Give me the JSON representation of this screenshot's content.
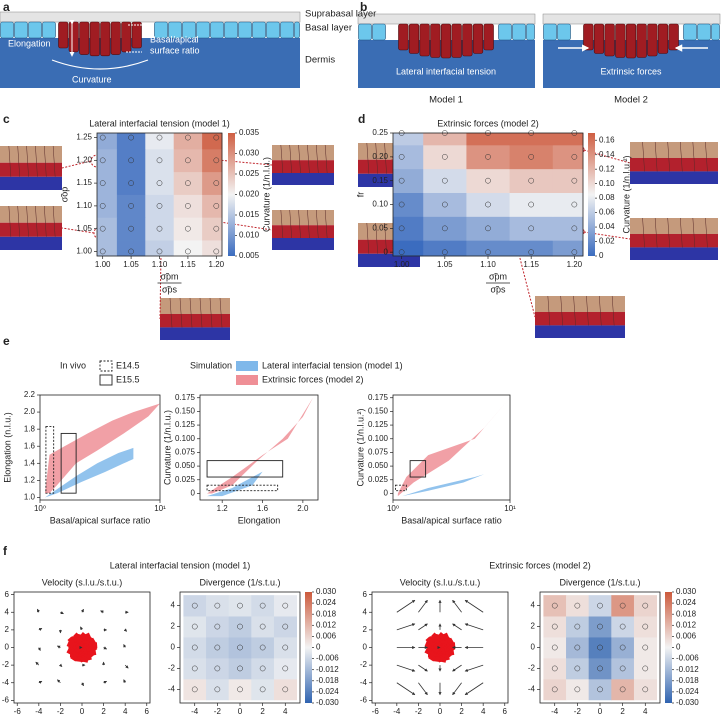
{
  "panel_labels": [
    "a",
    "b",
    "c",
    "d",
    "e",
    "f"
  ],
  "a": {
    "suprabasal": "Suprabasal layer",
    "basal": "Basal layer",
    "dermis": "Dermis",
    "elongation": "Elongation",
    "ratio": [
      "Basal/apical",
      "surface ratio"
    ],
    "curvature": "Curvature"
  },
  "b": {
    "model1_force": "Lateral interfacial tension",
    "model2_force": "Extrinsic forces",
    "model1": "Model 1",
    "model2": "Model 2"
  },
  "f": {
    "left_title": "Lateral interfacial tension (model 1)",
    "right_title": "Extrinsic forces (model 2)"
  },
  "chart_data": [
    {
      "type": "heatmap",
      "title": "Lateral interfacial tension (model 1)",
      "ylabel": "σ̃op",
      "xlabel": [
        "σ̃pm",
        "σ̃ps"
      ],
      "colorbar_label": "Curvature (1/n.l.u.)",
      "x": [
        1.0,
        1.05,
        1.1,
        1.15,
        1.2
      ],
      "y": [
        1.0,
        1.05,
        1.1,
        1.15,
        1.2,
        1.25
      ],
      "z": [
        [
          0.014,
          0.008,
          0.016,
          0.02,
          0.022
        ],
        [
          0.014,
          0.008,
          0.017,
          0.021,
          0.024
        ],
        [
          0.013,
          0.008,
          0.017,
          0.022,
          0.026
        ],
        [
          0.013,
          0.007,
          0.018,
          0.024,
          0.029
        ],
        [
          0.013,
          0.007,
          0.018,
          0.026,
          0.032
        ],
        [
          0.012,
          0.007,
          0.019,
          0.027,
          0.034
        ]
      ],
      "xlim": [
        0.99,
        1.21
      ],
      "ylim": [
        0.99,
        1.26
      ],
      "xticks": [
        {
          "value": 1.0,
          "label": "1.00"
        },
        1.05,
        {
          "value": 1.1,
          "label": "1.10"
        },
        1.15,
        {
          "value": 1.2,
          "label": "1.20"
        }
      ],
      "yticks": [
        {
          "value": 1.0,
          "label": "1.00"
        },
        1.05,
        {
          "value": 1.1,
          "label": "1.10"
        },
        1.15,
        {
          "value": 1.2,
          "label": "1.20"
        },
        1.25
      ],
      "colors": [
        "#3b6cbf",
        "#f3f3f3",
        "#cf5f43"
      ],
      "clim": [
        0.005,
        0.035
      ],
      "cticks": [
        0.005,
        {
          "value": 0.01,
          "label": "0.010"
        },
        0.015,
        {
          "value": 0.02,
          "label": "0.020"
        },
        0.025,
        {
          "value": 0.03,
          "label": "0.030"
        },
        0.035
      ]
    },
    {
      "type": "heatmap",
      "title": "Extrinsic forces (model 2)",
      "ylabel": "fr",
      "xlabel": [
        "σ̃pm",
        "σ̃ps"
      ],
      "colorbar_label": "Curvature (1/n.l.u.²)",
      "x": [
        1.0,
        1.05,
        1.1,
        1.15,
        1.2
      ],
      "y": [
        0,
        0.05,
        0.1,
        0.15,
        0.2,
        0.25
      ],
      "z": [
        [
          0.0,
          0.01,
          0.02,
          0.02,
          0.03
        ],
        [
          0.01,
          0.03,
          0.04,
          0.05,
          0.05
        ],
        [
          0.02,
          0.05,
          0.07,
          0.08,
          0.08
        ],
        [
          0.04,
          0.07,
          0.1,
          0.11,
          0.11
        ],
        [
          0.05,
          0.1,
          0.14,
          0.15,
          0.14
        ],
        [
          0.06,
          0.12,
          0.16,
          0.16,
          0.16
        ]
      ],
      "xlim": [
        0.99,
        1.21
      ],
      "ylim": [
        -0.008,
        0.25
      ],
      "xticks": [
        {
          "value": 1.0,
          "label": "1.00"
        },
        1.05,
        {
          "value": 1.1,
          "label": "1.10"
        },
        1.15,
        {
          "value": 1.2,
          "label": "1.20"
        }
      ],
      "yticks": [
        0,
        0.05,
        {
          "value": 0.1,
          "label": "0.10"
        },
        0.15,
        {
          "value": 0.2,
          "label": "0.20"
        },
        0.25
      ],
      "colors": [
        "#3b6cbf",
        "#f3f3f3",
        "#cf5f43"
      ],
      "clim": [
        0,
        0.17
      ],
      "cticks": [
        0,
        0.02,
        0.04,
        0.06,
        0.08,
        {
          "value": 0.1,
          "label": "0.10"
        },
        0.12,
        0.14,
        0.16
      ]
    },
    {
      "type": "area",
      "legend_title": "In vivo",
      "xlabel": "Basal/apical surface ratio",
      "ylabel": "Elongation (n.l.u.)",
      "log_x": true,
      "xlim": [
        1,
        10
      ],
      "ylim": [
        0.97,
        2.2
      ],
      "xticks": [
        {
          "value": 1,
          "label": "10⁰"
        },
        {
          "value": 10,
          "label": "10¹"
        }
      ],
      "yticks": [
        {
          "value": 1.0,
          "label": "1.0"
        },
        1.2,
        1.4,
        1.6,
        1.8,
        {
          "value": 2.0,
          "label": "2.0"
        },
        2.2
      ],
      "series": [
        {
          "color": "#7fb8ea",
          "x": [
            1.1,
            1.4,
            2,
            3,
            4.5,
            6,
            6,
            5,
            3.5,
            2.2,
            1.4,
            1.1
          ],
          "values": [
            1.0,
            1.1,
            1.25,
            1.4,
            1.52,
            1.58,
            1.45,
            1.4,
            1.3,
            1.18,
            1.05,
            1.0
          ]
        },
        {
          "color": "#ef8f96",
          "x": [
            1.1,
            1.2,
            1.6,
            2.5,
            4,
            6,
            10,
            8,
            5,
            3,
            2,
            1.4,
            1.2
          ],
          "values": [
            1.05,
            1.5,
            1.6,
            1.75,
            1.9,
            2.0,
            2.1,
            1.95,
            1.75,
            1.55,
            1.4,
            1.15,
            1.05
          ]
        }
      ],
      "boxes": [
        {
          "name": "E14.5",
          "style": "dashed",
          "x": [
            1.12,
            1.3
          ],
          "y": [
            1.05,
            1.83
          ]
        },
        {
          "name": "E15.5",
          "style": "solid",
          "x": [
            1.5,
            2.0
          ],
          "y": [
            1.05,
            1.75
          ]
        }
      ]
    },
    {
      "type": "area",
      "legend_title": "Simulation",
      "xlabel": "Elongation",
      "ylabel": "Curvature (1/n.l.u.)",
      "log_x": false,
      "xlim": [
        0.98,
        2.15
      ],
      "ylim": [
        -0.012,
        0.18
      ],
      "xticks": [
        1.2,
        1.6,
        {
          "value": 2.0,
          "label": "2.0"
        }
      ],
      "yticks": [
        0,
        0.025,
        {
          "value": 0.05,
          "label": "0.050"
        },
        0.075,
        {
          "value": 0.1,
          "label": "0.100"
        },
        0.125,
        {
          "value": 0.15,
          "label": "0.150"
        },
        0.175
      ],
      "series": [
        {
          "name": "Lateral interfacial tension (model 1)",
          "color": "#7fb8ea",
          "x": [
            1.05,
            1.3,
            1.5,
            1.6,
            1.5,
            1.2
          ],
          "values": [
            -0.005,
            0.01,
            0.03,
            0.04,
            0.015,
            -0.005
          ]
        },
        {
          "name": "Extrinsic forces (model 2)",
          "color": "#ef8f96",
          "x": [
            1.05,
            1.3,
            1.6,
            1.85,
            2.1,
            2.0,
            1.8,
            1.55,
            1.3,
            1.1
          ],
          "values": [
            0,
            0.03,
            0.07,
            0.1,
            0.175,
            0.14,
            0.1,
            0.06,
            0.015,
            0.0
          ]
        }
      ],
      "boxes": [
        {
          "style": "solid",
          "x": [
            1.05,
            1.8
          ],
          "y": [
            0.03,
            0.06
          ]
        },
        {
          "style": "dashed",
          "x": [
            1.05,
            1.75
          ],
          "y": [
            0.005,
            0.015
          ]
        }
      ]
    },
    {
      "type": "area",
      "xlabel": "Basal/apical surface ratio",
      "ylabel": "Curvature (1/n.l.u.²)",
      "log_x": true,
      "xlim": [
        1,
        10
      ],
      "ylim": [
        -0.012,
        0.18
      ],
      "xticks": [
        {
          "value": 1,
          "label": "10⁰"
        },
        {
          "value": 10,
          "label": "10¹"
        }
      ],
      "yticks": [
        0,
        0.025,
        {
          "value": 0.05,
          "label": "0.050"
        },
        0.075,
        {
          "value": 0.1,
          "label": "0.100"
        },
        0.125,
        {
          "value": 0.15,
          "label": "0.150"
        },
        0.175
      ],
      "series": [
        {
          "color": "#7fb8ea",
          "x": [
            1.2,
            2,
            5,
            6,
            4,
            2
          ],
          "values": [
            -0.005,
            0.01,
            0.03,
            0.035,
            0.02,
            0.005
          ]
        },
        {
          "color": "#ef8f96",
          "x": [
            1.1,
            1.3,
            2,
            5,
            10,
            6,
            3,
            1.5,
            1.1
          ],
          "values": [
            0,
            0.03,
            0.07,
            0.1,
            0.175,
            0.12,
            0.06,
            0.02,
            -0.005
          ]
        }
      ],
      "boxes": [
        {
          "style": "solid",
          "x": [
            1.4,
            1.9
          ],
          "y": [
            0.03,
            0.06
          ]
        },
        {
          "style": "dashed",
          "x": [
            1.05,
            1.3
          ],
          "y": [
            0.005,
            0.015
          ]
        }
      ]
    },
    {
      "type": "quiver",
      "title": "Velocity (s.l.u./s.t.u.)",
      "xlim": [
        -6.3,
        6.3
      ],
      "ylim": [
        -6.3,
        6.3
      ],
      "xticks": [
        -6,
        -4,
        -2,
        0,
        2,
        4,
        6
      ],
      "yticks": [
        -6,
        -4,
        -2,
        0,
        2,
        4,
        6
      ],
      "color": "#333333",
      "x": [
        -4,
        -2,
        0,
        2,
        4,
        -4,
        -2,
        0,
        2,
        4,
        -4,
        -2,
        0,
        2,
        4,
        -4,
        -2,
        0,
        2,
        4,
        -4,
        -2,
        0,
        2,
        4
      ],
      "y": [
        -4,
        -4,
        -4,
        -4,
        -4,
        -2,
        -2,
        -2,
        -2,
        -2,
        0,
        0,
        0,
        0,
        0,
        2,
        2,
        2,
        2,
        2,
        4,
        4,
        4,
        4,
        4
      ],
      "u": [
        0.1,
        -0.1,
        0.05,
        0.1,
        -0.05,
        -0.1,
        0.05,
        0.1,
        0,
        0.1,
        0.05,
        -0.1,
        0,
        0.1,
        -0.05,
        0.1,
        0,
        -0.05,
        0.1,
        0.05,
        -0.05,
        0.1,
        0.05,
        -0.1,
        0.1
      ],
      "v": [
        0.05,
        0.1,
        -0.1,
        0.05,
        0.1,
        0.1,
        -0.05,
        0,
        0.1,
        -0.1,
        -0.1,
        0.05,
        0,
        -0.05,
        0.1,
        0.05,
        -0.1,
        0.1,
        0,
        -0.05,
        0.1,
        -0.05,
        0.1,
        0.05,
        0
      ]
    },
    {
      "type": "heatmap",
      "title": "Divergence (1/s.t.u.)",
      "xlim": [
        -5.3,
        5.3
      ],
      "ylim": [
        -5.3,
        5.3
      ],
      "x": [
        -4,
        -2,
        0,
        2,
        4
      ],
      "y": [
        -4,
        -2,
        0,
        2,
        4
      ],
      "z": [
        [
          0.003,
          -0.004,
          0.002,
          -0.003,
          0.004
        ],
        [
          -0.004,
          -0.006,
          -0.008,
          -0.005,
          -0.002
        ],
        [
          -0.005,
          -0.008,
          -0.01,
          -0.008,
          -0.004
        ],
        [
          -0.003,
          -0.006,
          -0.008,
          -0.004,
          -0.006
        ],
        [
          -0.006,
          -0.004,
          -0.003,
          -0.005,
          -0.002
        ]
      ],
      "xticks": [
        -4,
        -2,
        0,
        2,
        4
      ],
      "yticks": [
        -4,
        -2,
        0,
        2,
        4
      ],
      "colors": [
        "#2f63b0",
        "#f3f3f3",
        "#cc5a3c"
      ],
      "clim": [
        -0.03,
        0.03
      ],
      "cticks": [
        {
          "value": 0.03,
          "label": "0.030"
        },
        0.024,
        0.018,
        0.012,
        0.006,
        0,
        -0.006,
        -0.012,
        -0.018,
        -0.024,
        {
          "value": -0.03,
          "label": "-0.030"
        }
      ]
    },
    {
      "type": "quiver",
      "title": "Velocity (s.l.u./s.t.u.)",
      "xlim": [
        -6.3,
        6.3
      ],
      "ylim": [
        -6.3,
        6.3
      ],
      "xticks": [
        -6,
        -4,
        -2,
        0,
        2,
        4,
        6
      ],
      "yticks": [
        -6,
        -4,
        -2,
        0,
        2,
        4,
        6
      ],
      "color": "#333333",
      "x": [
        -4,
        -2,
        0,
        2,
        4,
        -4,
        -2,
        0,
        2,
        4,
        -4,
        -2,
        0,
        2,
        4,
        -4,
        -2,
        0,
        2,
        4,
        -4,
        -2,
        0,
        2,
        4
      ],
      "y": [
        -4,
        -4,
        -4,
        -4,
        -4,
        -2,
        -2,
        -2,
        -2,
        -2,
        0,
        0,
        0,
        0,
        0,
        2,
        2,
        2,
        2,
        2,
        4,
        4,
        4,
        4,
        4
      ],
      "u": [
        0.6,
        0.3,
        0,
        -0.3,
        -0.6,
        0.6,
        0.3,
        0,
        -0.3,
        -0.6,
        0.6,
        0.3,
        0,
        -0.3,
        -0.6,
        0.6,
        0.3,
        0,
        -0.3,
        -0.6,
        0.6,
        0.3,
        0,
        -0.3,
        -0.6
      ],
      "v": [
        -0.4,
        -0.4,
        -0.4,
        -0.4,
        -0.4,
        -0.2,
        -0.2,
        -0.2,
        -0.2,
        -0.2,
        0,
        0,
        0,
        0,
        0,
        0.2,
        0.2,
        0.2,
        0.2,
        0.2,
        0.4,
        0.4,
        0.4,
        0.4,
        0.4
      ]
    },
    {
      "type": "heatmap",
      "title": "Divergence (1/s.t.u.)",
      "xlim": [
        -5.3,
        5.3
      ],
      "ylim": [
        -5.3,
        5.3
      ],
      "x": [
        -4,
        -2,
        0,
        2,
        4
      ],
      "y": [
        -4,
        -2,
        0,
        2,
        4
      ],
      "z": [
        [
          0.006,
          0.002,
          -0.01,
          0.012,
          0.004
        ],
        [
          0.004,
          -0.008,
          -0.02,
          -0.01,
          0.002
        ],
        [
          0.002,
          -0.012,
          -0.024,
          -0.014,
          0.002
        ],
        [
          0.004,
          -0.008,
          -0.018,
          -0.006,
          0.004
        ],
        [
          0.01,
          0.004,
          -0.006,
          0.018,
          0.006
        ]
      ],
      "xticks": [
        -4,
        -2,
        0,
        2,
        4
      ],
      "yticks": [
        -4,
        -2,
        0,
        2,
        4
      ],
      "colors": [
        "#2f63b0",
        "#f3f3f3",
        "#cc5a3c"
      ],
      "clim": [
        -0.03,
        0.03
      ],
      "cticks": [
        {
          "value": 0.03,
          "label": "0.030"
        },
        0.024,
        0.018,
        0.012,
        0.006,
        0,
        -0.006,
        -0.012,
        -0.018,
        -0.024,
        {
          "value": -0.03,
          "label": "-0.030"
        }
      ]
    }
  ]
}
